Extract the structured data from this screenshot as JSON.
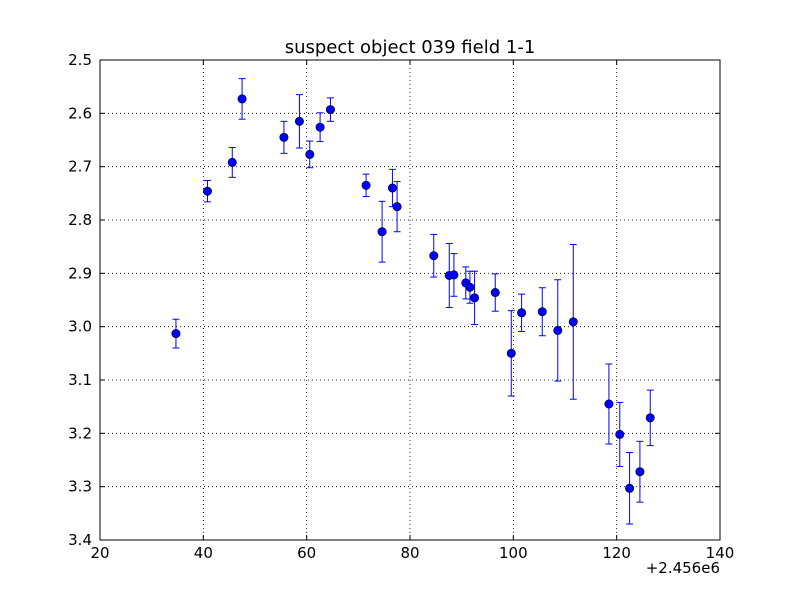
{
  "chart_data": {
    "type": "scatter",
    "title": "suspect object 039 field 1-1",
    "xlabel": "",
    "ylabel": "",
    "x_offset_label": "+2.456e6",
    "xlim": [
      20,
      140
    ],
    "ylim": [
      2.5,
      3.4
    ],
    "y_inverted": true,
    "grid": true,
    "grid_style": "dotted",
    "marker_color": "#0000ff",
    "errorbar_color": "#0000ff",
    "x_ticks": [
      "20",
      "40",
      "60",
      "80",
      "100",
      "120",
      "140"
    ],
    "y_ticks": [
      "2.5",
      "2.6",
      "2.7",
      "2.8",
      "2.9",
      "3.0",
      "3.1",
      "3.2",
      "3.3",
      "3.4"
    ],
    "points": [
      {
        "x": 2456034.7,
        "y": 3.013,
        "err": 0.027
      },
      {
        "x": 2456040.8,
        "y": 2.746,
        "err": 0.02
      },
      {
        "x": 2456045.6,
        "y": 2.692,
        "err": 0.028
      },
      {
        "x": 2456047.5,
        "y": 2.573,
        "err": 0.038
      },
      {
        "x": 2456055.6,
        "y": 2.645,
        "err": 0.03
      },
      {
        "x": 2456058.6,
        "y": 2.615,
        "err": 0.05
      },
      {
        "x": 2456060.6,
        "y": 2.677,
        "err": 0.025
      },
      {
        "x": 2456062.6,
        "y": 2.626,
        "err": 0.027
      },
      {
        "x": 2456064.6,
        "y": 2.593,
        "err": 0.022
      },
      {
        "x": 2456071.5,
        "y": 2.735,
        "err": 0.021
      },
      {
        "x": 2456074.6,
        "y": 2.822,
        "err": 0.057
      },
      {
        "x": 2456076.6,
        "y": 2.74,
        "err": 0.035
      },
      {
        "x": 2456077.5,
        "y": 2.775,
        "err": 0.047
      },
      {
        "x": 2456084.6,
        "y": 2.867,
        "err": 0.04
      },
      {
        "x": 2456087.6,
        "y": 2.904,
        "err": 0.06
      },
      {
        "x": 2456088.5,
        "y": 2.903,
        "err": 0.04
      },
      {
        "x": 2456090.8,
        "y": 2.918,
        "err": 0.03
      },
      {
        "x": 2456091.6,
        "y": 2.926,
        "err": 0.03
      },
      {
        "x": 2456092.5,
        "y": 2.946,
        "err": 0.05
      },
      {
        "x": 2456096.5,
        "y": 2.936,
        "err": 0.035
      },
      {
        "x": 2456099.6,
        "y": 3.05,
        "err": 0.08
      },
      {
        "x": 2456101.6,
        "y": 2.974,
        "err": 0.035
      },
      {
        "x": 2456105.6,
        "y": 2.972,
        "err": 0.045
      },
      {
        "x": 2456108.6,
        "y": 3.007,
        "err": 0.095
      },
      {
        "x": 2456111.6,
        "y": 2.991,
        "err": 0.145
      },
      {
        "x": 2456118.5,
        "y": 3.145,
        "err": 0.075
      },
      {
        "x": 2456120.6,
        "y": 3.202,
        "err": 0.06
      },
      {
        "x": 2456122.5,
        "y": 3.303,
        "err": 0.067
      },
      {
        "x": 2456124.5,
        "y": 3.272,
        "err": 0.057
      },
      {
        "x": 2456126.5,
        "y": 3.171,
        "err": 0.052
      }
    ]
  }
}
